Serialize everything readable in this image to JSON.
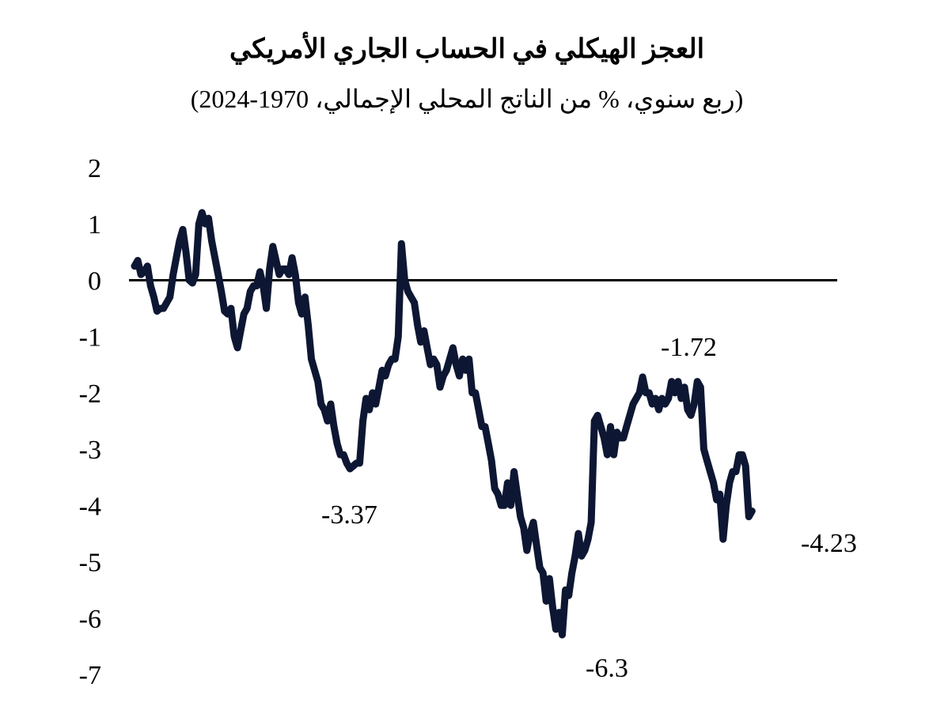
{
  "chart_data": {
    "type": "line",
    "title": "العجز الهيكلي في الحساب الجاري الأمريكي",
    "subtitle": "(ربع سنوي، % من الناتج المحلي الإجمالي، 1970-2024)",
    "xlabel": "",
    "ylabel": "",
    "ylim": [
      -7,
      2
    ],
    "yticks": [
      "2",
      "1",
      "0",
      "-1",
      "-2",
      "-3",
      "-4",
      "-5",
      "-6",
      "-7"
    ],
    "grid": false,
    "zero_line": true,
    "line_color": "#0d1733",
    "x_range": [
      1970,
      2024.5
    ],
    "series": [
      {
        "values": [
          [
            1970.0,
            0.25
          ],
          [
            1970.25,
            0.35
          ],
          [
            1970.5,
            0.1
          ],
          [
            1970.75,
            0.15
          ],
          [
            1971.0,
            0.25
          ],
          [
            1971.25,
            -0.1
          ],
          [
            1971.5,
            -0.3
          ],
          [
            1971.75,
            -0.55
          ],
          [
            1972.0,
            -0.5
          ],
          [
            1972.25,
            -0.5
          ],
          [
            1972.5,
            -0.4
          ],
          [
            1972.75,
            -0.3
          ],
          [
            1973.0,
            0.1
          ],
          [
            1973.25,
            0.4
          ],
          [
            1973.5,
            0.7
          ],
          [
            1973.75,
            0.9
          ],
          [
            1974.0,
            0.5
          ],
          [
            1974.25,
            0.0
          ],
          [
            1974.5,
            -0.05
          ],
          [
            1974.75,
            0.1
          ],
          [
            1975.0,
            1.0
          ],
          [
            1975.25,
            1.2
          ],
          [
            1975.5,
            1.0
          ],
          [
            1975.75,
            1.1
          ],
          [
            1976.0,
            0.7
          ],
          [
            1976.25,
            0.4
          ],
          [
            1976.5,
            0.1
          ],
          [
            1976.75,
            -0.2
          ],
          [
            1977.0,
            -0.55
          ],
          [
            1977.25,
            -0.6
          ],
          [
            1977.5,
            -0.5
          ],
          [
            1977.75,
            -1.0
          ],
          [
            1978.0,
            -1.2
          ],
          [
            1978.25,
            -0.9
          ],
          [
            1978.5,
            -0.6
          ],
          [
            1978.75,
            -0.5
          ],
          [
            1979.0,
            -0.2
          ],
          [
            1979.25,
            -0.1
          ],
          [
            1979.5,
            -0.1
          ],
          [
            1979.75,
            0.15
          ],
          [
            1980.0,
            -0.1
          ],
          [
            1980.25,
            -0.5
          ],
          [
            1980.5,
            0.2
          ],
          [
            1980.75,
            0.6
          ],
          [
            1981.0,
            0.35
          ],
          [
            1981.25,
            0.1
          ],
          [
            1981.5,
            0.2
          ],
          [
            1981.75,
            0.2
          ],
          [
            1982.0,
            0.1
          ],
          [
            1982.25,
            0.4
          ],
          [
            1982.5,
            0.1
          ],
          [
            1982.75,
            -0.4
          ],
          [
            1983.0,
            -0.6
          ],
          [
            1983.25,
            -0.3
          ],
          [
            1983.5,
            -0.8
          ],
          [
            1983.75,
            -1.4
          ],
          [
            1984.0,
            -1.6
          ],
          [
            1984.25,
            -1.8
          ],
          [
            1984.5,
            -2.2
          ],
          [
            1984.75,
            -2.3
          ],
          [
            1985.0,
            -2.5
          ],
          [
            1985.25,
            -2.2
          ],
          [
            1985.5,
            -2.6
          ],
          [
            1985.75,
            -2.9
          ],
          [
            1986.0,
            -3.1
          ],
          [
            1986.25,
            -3.1
          ],
          [
            1986.5,
            -3.25
          ],
          [
            1986.75,
            -3.35
          ],
          [
            1987.0,
            -3.3
          ],
          [
            1987.25,
            -3.25
          ],
          [
            1987.5,
            -3.25
          ],
          [
            1987.75,
            -2.5
          ],
          [
            1988.0,
            -2.1
          ],
          [
            1988.25,
            -2.3
          ],
          [
            1988.5,
            -2.0
          ],
          [
            1988.75,
            -2.2
          ],
          [
            1989.0,
            -1.9
          ],
          [
            1989.25,
            -1.6
          ],
          [
            1989.5,
            -1.7
          ],
          [
            1989.75,
            -1.5
          ],
          [
            1990.0,
            -1.4
          ],
          [
            1990.25,
            -1.4
          ],
          [
            1990.5,
            -1.0
          ],
          [
            1990.75,
            0.65
          ],
          [
            1991.0,
            0.0
          ],
          [
            1991.25,
            -0.2
          ],
          [
            1991.5,
            -0.3
          ],
          [
            1991.75,
            -0.4
          ],
          [
            1992.0,
            -0.8
          ],
          [
            1992.25,
            -1.1
          ],
          [
            1992.5,
            -0.9
          ],
          [
            1992.75,
            -1.2
          ],
          [
            1993.0,
            -1.5
          ],
          [
            1993.25,
            -1.4
          ],
          [
            1993.5,
            -1.5
          ],
          [
            1993.75,
            -1.9
          ],
          [
            1994.0,
            -1.7
          ],
          [
            1994.25,
            -1.6
          ],
          [
            1994.5,
            -1.4
          ],
          [
            1994.75,
            -1.2
          ],
          [
            1995.0,
            -1.5
          ],
          [
            1995.25,
            -1.7
          ],
          [
            1995.5,
            -1.4
          ],
          [
            1995.75,
            -1.6
          ],
          [
            1996.0,
            -1.4
          ],
          [
            1996.25,
            -2.0
          ],
          [
            1996.5,
            -2.0
          ],
          [
            1996.75,
            -2.3
          ],
          [
            1997.0,
            -2.6
          ],
          [
            1997.25,
            -2.6
          ],
          [
            1997.5,
            -2.9
          ],
          [
            1997.75,
            -3.2
          ],
          [
            1998.0,
            -3.7
          ],
          [
            1998.25,
            -3.8
          ],
          [
            1998.5,
            -4.0
          ],
          [
            1998.75,
            -4.0
          ],
          [
            1999.0,
            -3.6
          ],
          [
            1999.25,
            -4.0
          ],
          [
            1999.5,
            -3.4
          ],
          [
            1999.75,
            -3.8
          ],
          [
            2000.0,
            -4.2
          ],
          [
            2000.25,
            -4.4
          ],
          [
            2000.5,
            -4.8
          ],
          [
            2000.75,
            -4.5
          ],
          [
            2001.0,
            -4.3
          ],
          [
            2001.25,
            -4.7
          ],
          [
            2001.5,
            -5.1
          ],
          [
            2001.75,
            -5.2
          ],
          [
            2002.0,
            -5.7
          ],
          [
            2002.25,
            -5.3
          ],
          [
            2002.5,
            -5.8
          ],
          [
            2002.75,
            -6.2
          ],
          [
            2003.0,
            -5.9
          ],
          [
            2003.25,
            -6.3
          ],
          [
            2003.5,
            -5.5
          ],
          [
            2003.75,
            -5.6
          ],
          [
            2004.0,
            -5.2
          ],
          [
            2004.25,
            -4.9
          ],
          [
            2004.5,
            -4.5
          ],
          [
            2004.75,
            -4.9
          ],
          [
            2005.0,
            -4.8
          ],
          [
            2005.25,
            -4.6
          ],
          [
            2005.5,
            -4.3
          ],
          [
            2005.75,
            -2.5
          ],
          [
            2006.0,
            -2.4
          ],
          [
            2006.25,
            -2.6
          ],
          [
            2006.5,
            -2.8
          ],
          [
            2006.75,
            -3.1
          ],
          [
            2007.0,
            -2.6
          ],
          [
            2007.25,
            -3.1
          ],
          [
            2007.5,
            -2.7
          ],
          [
            2007.75,
            -2.8
          ],
          [
            2008.0,
            -2.8
          ],
          [
            2008.25,
            -2.6
          ],
          [
            2008.5,
            -2.4
          ],
          [
            2008.75,
            -2.2
          ],
          [
            2009.0,
            -2.1
          ],
          [
            2009.25,
            -2.0
          ],
          [
            2009.5,
            -1.72
          ],
          [
            2009.75,
            -2.0
          ],
          [
            2010.0,
            -2.0
          ],
          [
            2010.25,
            -2.2
          ],
          [
            2010.5,
            -2.1
          ],
          [
            2010.75,
            -2.3
          ],
          [
            2011.0,
            -2.1
          ],
          [
            2011.25,
            -2.2
          ],
          [
            2011.5,
            -2.1
          ],
          [
            2011.75,
            -1.8
          ],
          [
            2012.0,
            -2.0
          ],
          [
            2012.25,
            -1.8
          ],
          [
            2012.5,
            -2.1
          ],
          [
            2012.75,
            -1.9
          ],
          [
            2013.0,
            -2.3
          ],
          [
            2013.25,
            -2.4
          ],
          [
            2013.5,
            -2.2
          ],
          [
            2013.75,
            -1.8
          ],
          [
            2014.0,
            -1.9
          ],
          [
            2014.25,
            -3.0
          ],
          [
            2014.5,
            -3.2
          ],
          [
            2014.75,
            -3.4
          ],
          [
            2015.0,
            -3.6
          ],
          [
            2015.25,
            -3.9
          ],
          [
            2015.5,
            -3.8
          ],
          [
            2015.75,
            -4.6
          ],
          [
            2016.0,
            -4.0
          ],
          [
            2016.25,
            -3.6
          ],
          [
            2016.5,
            -3.4
          ],
          [
            2016.75,
            -3.4
          ],
          [
            2017.0,
            -3.1
          ],
          [
            2017.25,
            -3.1
          ],
          [
            2017.5,
            -3.3
          ],
          [
            2017.75,
            -4.2
          ],
          [
            2018.0,
            -4.1
          ]
        ]
      }
    ],
    "annotations": [
      {
        "text": "-3.37"
      },
      {
        "text": "-1.72"
      },
      {
        "text": "-6.3"
      },
      {
        "text": "-4.23"
      }
    ]
  }
}
